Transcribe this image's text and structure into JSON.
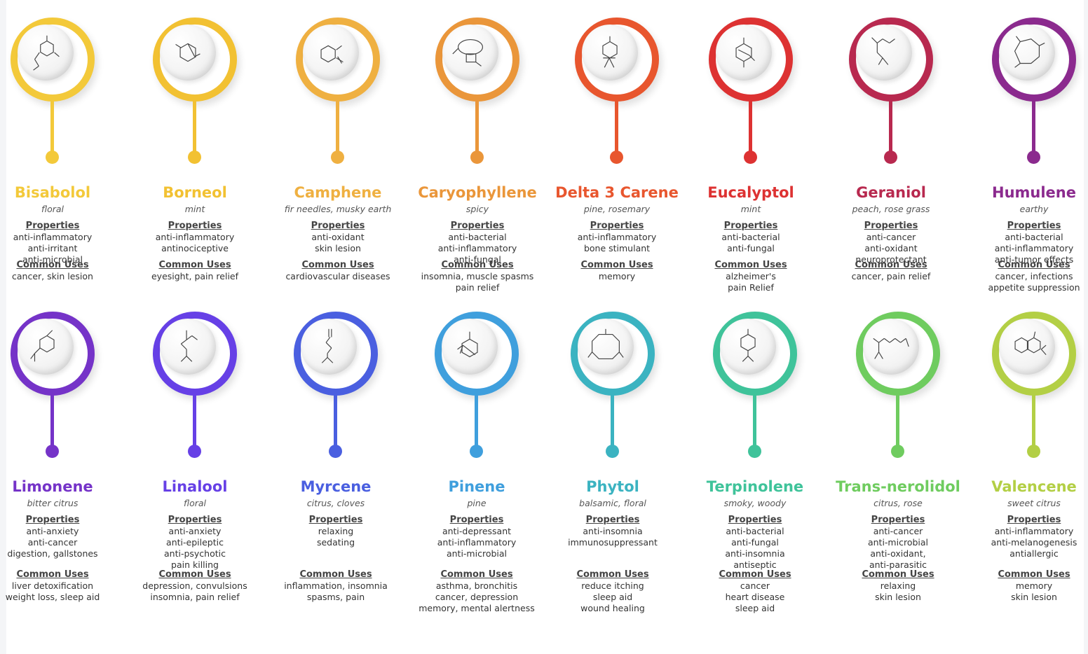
{
  "labels": {
    "properties": "Properties",
    "common_uses": "Common Uses"
  },
  "terpenes": [
    {
      "name": "Bisabolol",
      "aroma": "floral",
      "color": "#f3c93a",
      "molecule": "bisabolol-structure-icon",
      "properties": [
        "anti-inflammatory",
        "anti-irritant",
        "anti-microbial"
      ],
      "uses": [
        "cancer, skin lesion"
      ]
    },
    {
      "name": "Borneol",
      "aroma": "mint",
      "color": "#f2c132",
      "molecule": "borneol-structure-icon",
      "properties": [
        "anti-inflammatory",
        "antinociceptive"
      ],
      "uses": [
        "eyesight, pain relief"
      ]
    },
    {
      "name": "Camphene",
      "aroma": "fir needles, musky earth",
      "color": "#efb041",
      "molecule": "camphene-structure-icon",
      "properties": [
        "anti-oxidant",
        "skin lesion"
      ],
      "uses": [
        "cardiovascular diseases"
      ]
    },
    {
      "name": "Caryophyllene",
      "aroma": "spicy",
      "color": "#ea963a",
      "molecule": "caryophyllene-structure-icon",
      "properties": [
        "anti-bacterial",
        "anti-inflammatory",
        "anti-fungal"
      ],
      "uses": [
        "insomnia, muscle spasms",
        "pain relief"
      ]
    },
    {
      "name": "Delta 3 Carene",
      "aroma": "pine, rosemary",
      "color": "#e8562e",
      "molecule": "delta-3-carene-structure-icon",
      "properties": [
        "anti-inflammatory",
        "bone stimulant"
      ],
      "uses": [
        "memory"
      ]
    },
    {
      "name": "Eucalyptol",
      "aroma": "mint",
      "color": "#dd3232",
      "molecule": "eucalyptol-structure-icon",
      "properties": [
        "anti-bacterial",
        "anti-fungal"
      ],
      "uses": [
        "alzheimer's",
        "pain Relief"
      ]
    },
    {
      "name": "Geraniol",
      "aroma": "peach, rose grass",
      "color": "#b8294f",
      "molecule": "geraniol-structure-icon",
      "properties": [
        "anti-cancer",
        "anti-oxidant",
        "neuroprotectant"
      ],
      "uses": [
        "cancer, pain relief"
      ]
    },
    {
      "name": "Humulene",
      "aroma": "earthy",
      "color": "#8b2a8e",
      "molecule": "humulene-structure-icon",
      "properties": [
        "anti-bacterial",
        "anti-inflammatory",
        "anti-tumor effects"
      ],
      "uses": [
        "cancer, infections",
        "appetite suppression"
      ]
    },
    {
      "name": "Limonene",
      "aroma": "bitter citrus",
      "color": "#7533c8",
      "molecule": "limonene-structure-icon",
      "properties": [
        "anti-anxiety",
        "anti-cancer",
        "digestion, gallstones"
      ],
      "uses": [
        "liver detoxification",
        "weight loss, sleep aid"
      ]
    },
    {
      "name": "Linalool",
      "aroma": "floral",
      "color": "#6640e6",
      "molecule": "linalool-structure-icon",
      "properties": [
        "anti-anxiety",
        "anti-epileptic",
        "anti-psychotic",
        "pain killing"
      ],
      "uses": [
        "depression, convulsions",
        "insomnia, pain relief"
      ]
    },
    {
      "name": "Myrcene",
      "aroma": "citrus, cloves",
      "color": "#4a5fe0",
      "molecule": "myrcene-structure-icon",
      "properties": [
        "relaxing",
        "sedating"
      ],
      "uses": [
        "inflammation,  insomnia",
        "spasms, pain"
      ]
    },
    {
      "name": "Pinene",
      "aroma": "pine",
      "color": "#3f9fdd",
      "molecule": "pinene-structure-icon",
      "properties": [
        "anti-depressant",
        "anti-inflammatory",
        "anti-microbial"
      ],
      "uses": [
        "asthma, bronchitis",
        "cancer, depression",
        "memory, mental alertness"
      ]
    },
    {
      "name": "Phytol",
      "aroma": "balsamic, floral",
      "color": "#3bb3c1",
      "molecule": "phytol-structure-icon",
      "properties": [
        "anti-insomnia",
        "immunosuppressant"
      ],
      "uses": [
        "reduce itching",
        "sleep aid",
        "wound healing"
      ]
    },
    {
      "name": "Terpinolene",
      "aroma": "smoky, woody",
      "color": "#3fc39a",
      "molecule": "terpinolene-structure-icon",
      "properties": [
        "anti-bacterial",
        "anti-fungal",
        "anti-insomnia",
        "antiseptic"
      ],
      "uses": [
        "cancer",
        "heart disease",
        "sleep aid"
      ]
    },
    {
      "name": "Trans-nerolidol",
      "aroma": "citrus, rose",
      "color": "#6fcc5f",
      "molecule": "trans-nerolidol-structure-icon",
      "properties": [
        "anti-cancer",
        "anti-microbial",
        "anti-oxidant,",
        "anti-parasitic"
      ],
      "uses": [
        "relaxing",
        "skin lesion"
      ]
    },
    {
      "name": "Valencene",
      "aroma": "sweet citrus",
      "color": "#b3cf45",
      "molecule": "valencene-structure-icon",
      "properties": [
        "anti-inflammatory",
        "anti-melanogenesis",
        "antiallergic"
      ],
      "uses": [
        "memory",
        "skin lesion"
      ]
    }
  ]
}
